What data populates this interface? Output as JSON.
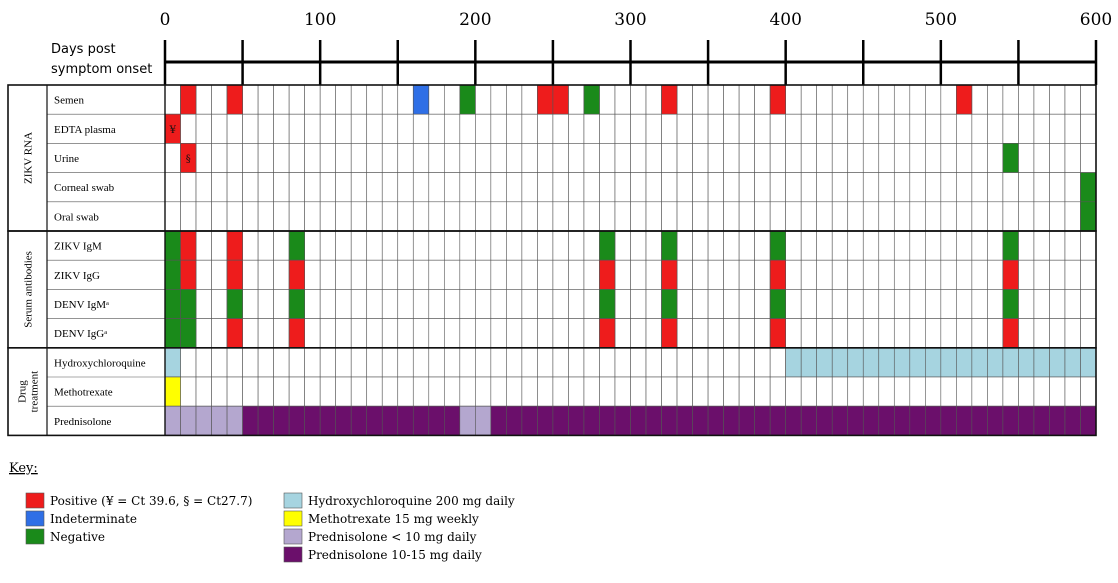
{
  "axis": {
    "title_line1": "Days post",
    "title_line2": "symptom onset",
    "ticks": [
      "0",
      "100",
      "200",
      "300",
      "400",
      "500",
      "600"
    ],
    "cell_days": 10,
    "max_day": 600
  },
  "colors": {
    "positive": "#ee1c1c",
    "indeterminate": "#2f6fe6",
    "negative": "#1a8a1a",
    "hcq": "#a6d4e0",
    "mtx": "#ffff00",
    "pred_low": "#b4a7cf",
    "pred_high": "#6b0f6b"
  },
  "groups": [
    {
      "label": "ZIKV RNA",
      "rows": [
        {
          "label": "Semen",
          "cells": [
            [
              10,
              "positive"
            ],
            [
              40,
              "positive"
            ],
            [
              160,
              "indeterminate"
            ],
            [
              190,
              "negative"
            ],
            [
              240,
              "positive"
            ],
            [
              250,
              "positive"
            ],
            [
              270,
              "negative"
            ],
            [
              320,
              "positive"
            ],
            [
              390,
              "positive"
            ],
            [
              510,
              "positive"
            ]
          ]
        },
        {
          "label": "EDTA plasma",
          "cells": [
            [
              0,
              "positive",
              "¥"
            ]
          ]
        },
        {
          "label": "Urine",
          "cells": [
            [
              10,
              "positive",
              "§"
            ],
            [
              540,
              "negative"
            ]
          ]
        },
        {
          "label": "Corneal swab",
          "cells": [
            [
              590,
              "negative"
            ]
          ]
        },
        {
          "label": "Oral swab",
          "cells": [
            [
              590,
              "negative"
            ]
          ]
        }
      ]
    },
    {
      "label": "Serum antibodies",
      "rows": [
        {
          "label": "ZIKV IgM",
          "cells": [
            [
              0,
              "negative"
            ],
            [
              10,
              "positive"
            ],
            [
              40,
              "positive"
            ],
            [
              80,
              "negative"
            ],
            [
              280,
              "negative"
            ],
            [
              320,
              "negative"
            ],
            [
              390,
              "negative"
            ],
            [
              540,
              "negative"
            ]
          ]
        },
        {
          "label": "ZIKV IgG",
          "cells": [
            [
              0,
              "negative"
            ],
            [
              10,
              "positive"
            ],
            [
              40,
              "positive"
            ],
            [
              80,
              "positive"
            ],
            [
              280,
              "positive"
            ],
            [
              320,
              "positive"
            ],
            [
              390,
              "positive"
            ],
            [
              540,
              "positive"
            ]
          ]
        },
        {
          "label": "DENV IgMᵃ",
          "cells": [
            [
              0,
              "negative"
            ],
            [
              10,
              "negative"
            ],
            [
              40,
              "negative"
            ],
            [
              80,
              "negative"
            ],
            [
              280,
              "negative"
            ],
            [
              320,
              "negative"
            ],
            [
              390,
              "negative"
            ],
            [
              540,
              "negative"
            ]
          ]
        },
        {
          "label": "DENV IgGᵃ",
          "cells": [
            [
              0,
              "negative"
            ],
            [
              10,
              "negative"
            ],
            [
              40,
              "positive"
            ],
            [
              80,
              "positive"
            ],
            [
              280,
              "positive"
            ],
            [
              320,
              "positive"
            ],
            [
              390,
              "positive"
            ],
            [
              540,
              "positive"
            ]
          ]
        }
      ]
    },
    {
      "label": "Drug treatment",
      "label_lines": [
        "Drug",
        "treatment"
      ],
      "rows": [
        {
          "label": "Hydroxychloroquine",
          "ranges": [
            [
              0,
              10,
              "hcq"
            ],
            [
              400,
              600,
              "hcq"
            ]
          ]
        },
        {
          "label": "Methotrexate",
          "ranges": [
            [
              0,
              10,
              "mtx"
            ]
          ]
        },
        {
          "label": "Prednisolone",
          "ranges": [
            [
              0,
              50,
              "pred_low"
            ],
            [
              50,
              190,
              "pred_high"
            ],
            [
              190,
              210,
              "pred_low"
            ],
            [
              210,
              600,
              "pred_high"
            ]
          ]
        }
      ]
    }
  ],
  "key": {
    "title": "Key:",
    "items_left": [
      {
        "label": "Positive (¥ = Ct 39.6, § = Ct27.7)",
        "color": "positive"
      },
      {
        "label": "Indeterminate",
        "color": "indeterminate"
      },
      {
        "label": "Negative",
        "color": "negative"
      }
    ],
    "items_right": [
      {
        "label": "Hydroxychloroquine 200 mg daily",
        "color": "hcq"
      },
      {
        "label": "Methotrexate 15 mg weekly",
        "color": "mtx"
      },
      {
        "label": "Prednisolone < 10 mg daily",
        "color": "pred_low"
      },
      {
        "label": "Prednisolone 10-15 mg daily",
        "color": "pred_high"
      }
    ]
  }
}
